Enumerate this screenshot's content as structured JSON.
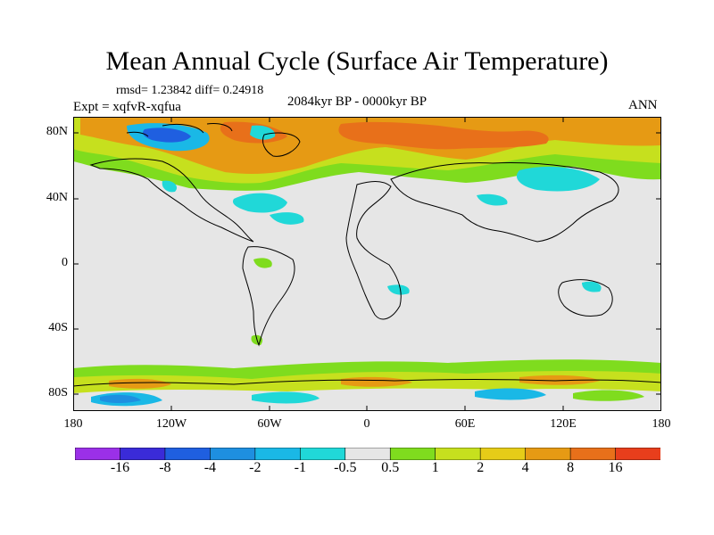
{
  "title": "Mean Annual Cycle (Surface Air Temperature)",
  "stats": "rmsd= 1.23842 diff= 0.24918",
  "experiment": "Expt = xqfvR-xqfua",
  "period": "2084kyr BP - 0000kyr BP",
  "season": "ANN",
  "lat_ticks": [
    "80N",
    "40N",
    "0",
    "40S",
    "80S"
  ],
  "lon_ticks": [
    "180",
    "120W",
    "60W",
    "0",
    "60E",
    "120E",
    "180"
  ],
  "colorbar": {
    "colors": [
      "#9b30e8",
      "#3a2bd8",
      "#1f5fe0",
      "#1e8fe0",
      "#1ab8e6",
      "#20d8d8",
      "#e6e6e6",
      "#7fdc1e",
      "#c6e01e",
      "#e6cc18",
      "#e69a14",
      "#e8701a",
      "#e83e1c"
    ],
    "labels": [
      "-16",
      "-8",
      "-4",
      "-2",
      "-1",
      "-0.5",
      "0.5",
      "1",
      "2",
      "4",
      "8",
      "16"
    ]
  },
  "palette": {
    "neutral": "#e6e6e6",
    "warm1": "#7fdc1e",
    "warm2": "#c6e01e",
    "warm3": "#e6cc18",
    "warm4": "#e69a14",
    "warm5": "#e8701a",
    "cool1": "#20d8d8",
    "cool2": "#1ab8e6",
    "cool3": "#1e8fe0",
    "cool4": "#1f5fe0"
  }
}
